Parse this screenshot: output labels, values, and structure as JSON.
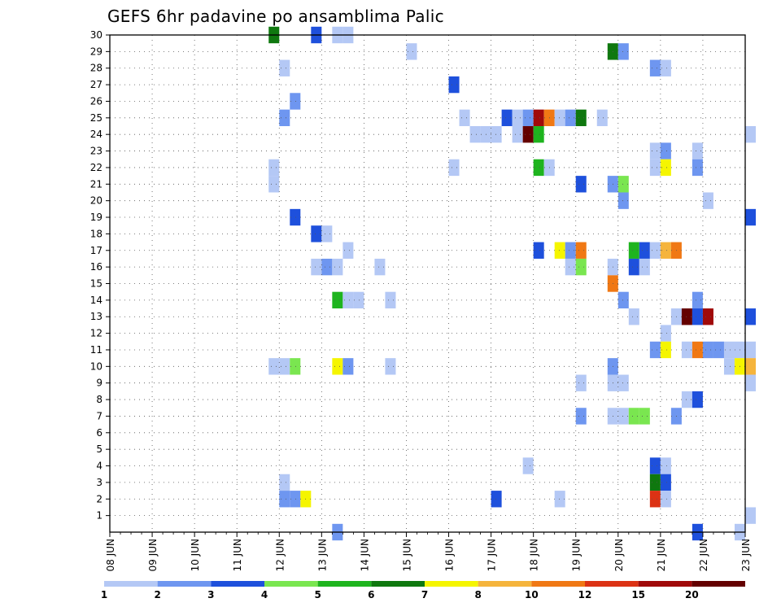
{
  "chart_data": {
    "type": "heatmap",
    "title": "GEFS 6hr padavine po ansamblima Palic",
    "xlabel": "",
    "ylabel": "",
    "x_tick_labels": [
      "08 JUN",
      "09 JUN",
      "10 JUN",
      "11 JUN",
      "12 JUN",
      "13 JUN",
      "14 JUN",
      "15 JUN",
      "16 JUN",
      "17 JUN",
      "18 JUN",
      "19 JUN",
      "20 JUN",
      "21 JUN",
      "22 JUN",
      "23 JUN"
    ],
    "y_tick_labels": [
      "1",
      "2",
      "3",
      "4",
      "5",
      "6",
      "7",
      "8",
      "9",
      "10",
      "11",
      "12",
      "13",
      "14",
      "15",
      "16",
      "17",
      "18",
      "19",
      "20",
      "21",
      "22",
      "23",
      "24",
      "25",
      "26",
      "27",
      "28",
      "29",
      "30"
    ],
    "xlim_days": [
      0,
      15
    ],
    "ylim_members": [
      0,
      30
    ],
    "steps_per_day": 4,
    "grid": true,
    "legend": {
      "placement": "bottom",
      "labels": [
        "1",
        "2",
        "3",
        "4",
        "5",
        "6",
        "7",
        "8",
        "10",
        "12",
        "15",
        "20"
      ],
      "colors": [
        "#b4c8f5",
        "#6e96f0",
        "#1e50dc",
        "#7ae650",
        "#1eb41e",
        "#0f780f",
        "#f5f500",
        "#f5b43c",
        "#f07814",
        "#dc3214",
        "#a00a0a",
        "#640000"
      ]
    },
    "cells": [
      {
        "member": 30,
        "day": 11.75,
        "cls": 6
      },
      {
        "member": 30,
        "day": 12.75,
        "cls": 3
      },
      {
        "member": 30,
        "day": 13.25,
        "cls": 1
      },
      {
        "member": 30,
        "day": 13.5,
        "cls": 1
      },
      {
        "member": 29,
        "day": 15.0,
        "cls": 1
      },
      {
        "member": 29,
        "day": 19.75,
        "cls": 6
      },
      {
        "member": 29,
        "day": 20.0,
        "cls": 2
      },
      {
        "member": 28,
        "day": 12.0,
        "cls": 1
      },
      {
        "member": 28,
        "day": 20.75,
        "cls": 2
      },
      {
        "member": 28,
        "day": 21.0,
        "cls": 1
      },
      {
        "member": 27,
        "day": 16.0,
        "cls": 3
      },
      {
        "member": 26,
        "day": 12.25,
        "cls": 2
      },
      {
        "member": 25,
        "day": 12.0,
        "cls": 2
      },
      {
        "member": 25,
        "day": 16.25,
        "cls": 1
      },
      {
        "member": 25,
        "day": 17.25,
        "cls": 3
      },
      {
        "member": 25,
        "day": 17.5,
        "cls": 1
      },
      {
        "member": 25,
        "day": 17.75,
        "cls": 2
      },
      {
        "member": 25,
        "day": 18.0,
        "cls": 11
      },
      {
        "member": 25,
        "day": 18.25,
        "cls": 9
      },
      {
        "member": 25,
        "day": 18.5,
        "cls": 1
      },
      {
        "member": 25,
        "day": 18.75,
        "cls": 2
      },
      {
        "member": 25,
        "day": 19.0,
        "cls": 6
      },
      {
        "member": 25,
        "day": 19.5,
        "cls": 1
      },
      {
        "member": 24,
        "day": 16.5,
        "cls": 1
      },
      {
        "member": 24,
        "day": 16.75,
        "cls": 1
      },
      {
        "member": 24,
        "day": 17.0,
        "cls": 1
      },
      {
        "member": 24,
        "day": 17.5,
        "cls": 1
      },
      {
        "member": 24,
        "day": 17.75,
        "cls": 12
      },
      {
        "member": 24,
        "day": 18.0,
        "cls": 5
      },
      {
        "member": 24,
        "day": 23.0,
        "cls": 1
      },
      {
        "member": 23,
        "day": 20.75,
        "cls": 1
      },
      {
        "member": 23,
        "day": 21.0,
        "cls": 2
      },
      {
        "member": 23,
        "day": 21.75,
        "cls": 1
      },
      {
        "member": 22,
        "day": 11.75,
        "cls": 1
      },
      {
        "member": 22,
        "day": 16.0,
        "cls": 1
      },
      {
        "member": 22,
        "day": 18.0,
        "cls": 5
      },
      {
        "member": 22,
        "day": 18.25,
        "cls": 1
      },
      {
        "member": 22,
        "day": 20.75,
        "cls": 1
      },
      {
        "member": 22,
        "day": 21.0,
        "cls": 7
      },
      {
        "member": 22,
        "day": 21.75,
        "cls": 2
      },
      {
        "member": 21,
        "day": 11.75,
        "cls": 1
      },
      {
        "member": 21,
        "day": 19.0,
        "cls": 3
      },
      {
        "member": 21,
        "day": 19.75,
        "cls": 2
      },
      {
        "member": 21,
        "day": 20.0,
        "cls": 4
      },
      {
        "member": 20,
        "day": 20.0,
        "cls": 2
      },
      {
        "member": 20,
        "day": 22.0,
        "cls": 1
      },
      {
        "member": 19,
        "day": 12.25,
        "cls": 3
      },
      {
        "member": 19,
        "day": 23.0,
        "cls": 3
      },
      {
        "member": 18,
        "day": 12.75,
        "cls": 3
      },
      {
        "member": 18,
        "day": 13.0,
        "cls": 1
      },
      {
        "member": 17,
        "day": 13.5,
        "cls": 1
      },
      {
        "member": 17,
        "day": 18.0,
        "cls": 3
      },
      {
        "member": 17,
        "day": 18.5,
        "cls": 7
      },
      {
        "member": 17,
        "day": 18.75,
        "cls": 2
      },
      {
        "member": 17,
        "day": 19.0,
        "cls": 9
      },
      {
        "member": 17,
        "day": 20.25,
        "cls": 5
      },
      {
        "member": 17,
        "day": 20.5,
        "cls": 3
      },
      {
        "member": 17,
        "day": 20.75,
        "cls": 1
      },
      {
        "member": 17,
        "day": 21.0,
        "cls": 8
      },
      {
        "member": 17,
        "day": 21.25,
        "cls": 9
      },
      {
        "member": 16,
        "day": 12.75,
        "cls": 1
      },
      {
        "member": 16,
        "day": 13.0,
        "cls": 2
      },
      {
        "member": 16,
        "day": 13.25,
        "cls": 1
      },
      {
        "member": 16,
        "day": 14.25,
        "cls": 1
      },
      {
        "member": 16,
        "day": 18.75,
        "cls": 1
      },
      {
        "member": 16,
        "day": 19.0,
        "cls": 4
      },
      {
        "member": 16,
        "day": 19.75,
        "cls": 1
      },
      {
        "member": 16,
        "day": 20.25,
        "cls": 3
      },
      {
        "member": 16,
        "day": 20.5,
        "cls": 1
      },
      {
        "member": 15,
        "day": 19.75,
        "cls": 9
      },
      {
        "member": 14,
        "day": 13.25,
        "cls": 5
      },
      {
        "member": 14,
        "day": 13.5,
        "cls": 1
      },
      {
        "member": 14,
        "day": 13.75,
        "cls": 1
      },
      {
        "member": 14,
        "day": 14.5,
        "cls": 1
      },
      {
        "member": 14,
        "day": 20.0,
        "cls": 2
      },
      {
        "member": 14,
        "day": 21.75,
        "cls": 2
      },
      {
        "member": 13,
        "day": 20.25,
        "cls": 1
      },
      {
        "member": 13,
        "day": 21.25,
        "cls": 1
      },
      {
        "member": 13,
        "day": 21.5,
        "cls": 12
      },
      {
        "member": 13,
        "day": 21.75,
        "cls": 3
      },
      {
        "member": 13,
        "day": 22.0,
        "cls": 11
      },
      {
        "member": 13,
        "day": 23.0,
        "cls": 3
      },
      {
        "member": 12,
        "day": 21.0,
        "cls": 1
      },
      {
        "member": 11,
        "day": 20.75,
        "cls": 2
      },
      {
        "member": 11,
        "day": 21.0,
        "cls": 7
      },
      {
        "member": 11,
        "day": 21.5,
        "cls": 1
      },
      {
        "member": 11,
        "day": 21.75,
        "cls": 9
      },
      {
        "member": 11,
        "day": 22.0,
        "cls": 2
      },
      {
        "member": 11,
        "day": 22.25,
        "cls": 2
      },
      {
        "member": 11,
        "day": 22.5,
        "cls": 1
      },
      {
        "member": 11,
        "day": 22.75,
        "cls": 1
      },
      {
        "member": 11,
        "day": 23.0,
        "cls": 1
      },
      {
        "member": 10,
        "day": 11.75,
        "cls": 1
      },
      {
        "member": 10,
        "day": 12.0,
        "cls": 1
      },
      {
        "member": 10,
        "day": 12.25,
        "cls": 4
      },
      {
        "member": 10,
        "day": 13.25,
        "cls": 7
      },
      {
        "member": 10,
        "day": 13.5,
        "cls": 2
      },
      {
        "member": 10,
        "day": 14.5,
        "cls": 1
      },
      {
        "member": 10,
        "day": 19.75,
        "cls": 2
      },
      {
        "member": 10,
        "day": 22.5,
        "cls": 1
      },
      {
        "member": 10,
        "day": 22.75,
        "cls": 7
      },
      {
        "member": 10,
        "day": 23.0,
        "cls": 8
      },
      {
        "member": 9,
        "day": 19.0,
        "cls": 1
      },
      {
        "member": 9,
        "day": 19.75,
        "cls": 1
      },
      {
        "member": 9,
        "day": 20.0,
        "cls": 1
      },
      {
        "member": 9,
        "day": 23.0,
        "cls": 1
      },
      {
        "member": 8,
        "day": 21.5,
        "cls": 1
      },
      {
        "member": 8,
        "day": 21.75,
        "cls": 3
      },
      {
        "member": 7,
        "day": 19.0,
        "cls": 2
      },
      {
        "member": 7,
        "day": 19.75,
        "cls": 1
      },
      {
        "member": 7,
        "day": 20.0,
        "cls": 1
      },
      {
        "member": 7,
        "day": 20.25,
        "cls": 4
      },
      {
        "member": 7,
        "day": 20.5,
        "cls": 4
      },
      {
        "member": 7,
        "day": 21.25,
        "cls": 2
      },
      {
        "member": 4,
        "day": 17.75,
        "cls": 1
      },
      {
        "member": 4,
        "day": 20.75,
        "cls": 3
      },
      {
        "member": 4,
        "day": 21.0,
        "cls": 1
      },
      {
        "member": 3,
        "day": 12.0,
        "cls": 1
      },
      {
        "member": 3,
        "day": 20.75,
        "cls": 6
      },
      {
        "member": 3,
        "day": 21.0,
        "cls": 3
      },
      {
        "member": 2,
        "day": 12.0,
        "cls": 2
      },
      {
        "member": 2,
        "day": 12.25,
        "cls": 2
      },
      {
        "member": 2,
        "day": 12.5,
        "cls": 7
      },
      {
        "member": 2,
        "day": 17.0,
        "cls": 3
      },
      {
        "member": 2,
        "day": 18.5,
        "cls": 1
      },
      {
        "member": 2,
        "day": 20.75,
        "cls": 10
      },
      {
        "member": 2,
        "day": 21.0,
        "cls": 1
      },
      {
        "member": 1,
        "day": 23.0,
        "cls": 1
      },
      {
        "member": 0,
        "day": 13.25,
        "cls": 2
      },
      {
        "member": 0,
        "day": 21.75,
        "cls": 3
      },
      {
        "member": 0,
        "day": 22.75,
        "cls": 1
      }
    ]
  }
}
